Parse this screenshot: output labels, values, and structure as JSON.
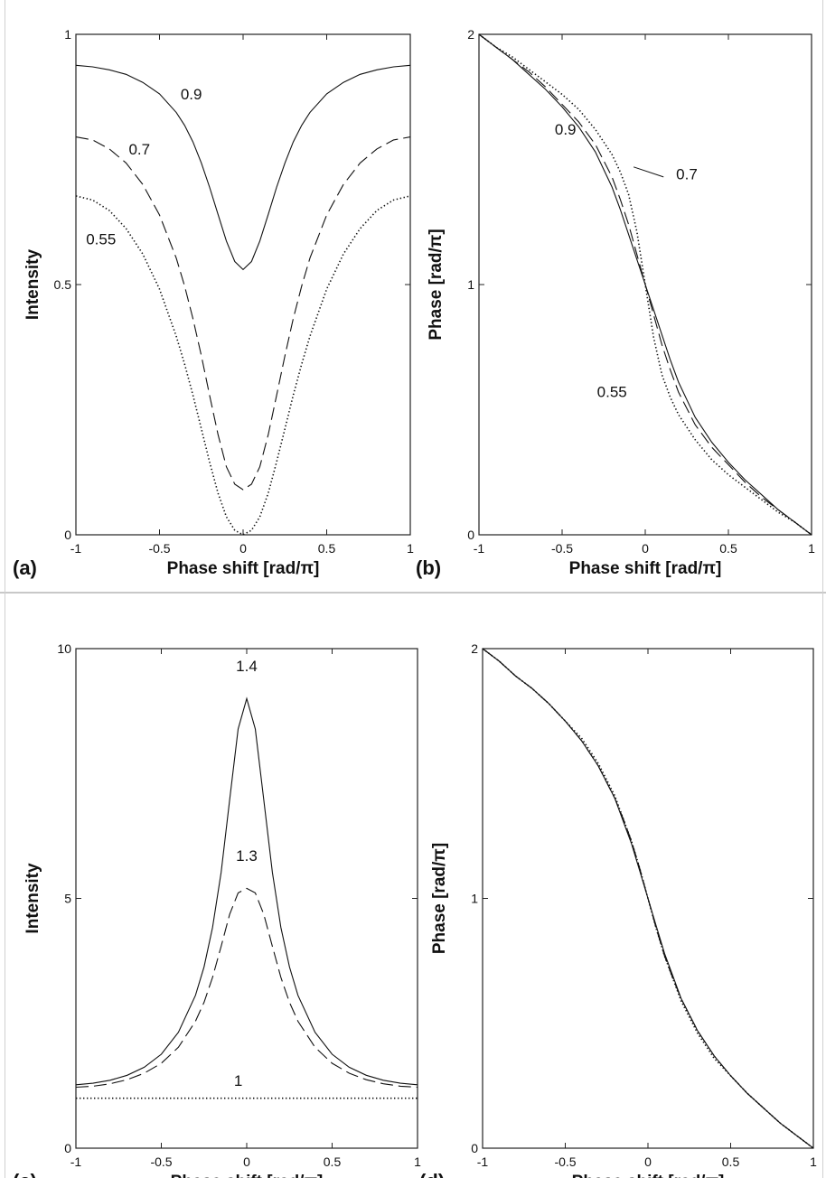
{
  "chart_data": [
    {
      "panel": "(a)",
      "type": "line",
      "xlabel": "Phase shift [rad/π]",
      "ylabel": "Intensity",
      "xlim": [
        -1,
        1
      ],
      "ylim": [
        0,
        1
      ],
      "xticks": [
        -1,
        -0.5,
        0,
        0.5,
        1
      ],
      "xtick_labels": [
        "-1",
        "-0.5",
        "0",
        "0.5",
        "1"
      ],
      "yticks": [
        0,
        0.5,
        1
      ],
      "ytick_labels": [
        "0",
        "0.5",
        "1"
      ],
      "grid": false,
      "series": [
        {
          "name": "0.9",
          "style": "solid",
          "x": [
            -1,
            -0.9,
            -0.8,
            -0.7,
            -0.6,
            -0.5,
            -0.4,
            -0.35,
            -0.3,
            -0.25,
            -0.2,
            -0.15,
            -0.1,
            -0.05,
            0,
            0.05,
            0.1,
            0.15,
            0.2,
            0.25,
            0.3,
            0.35,
            0.4,
            0.5,
            0.6,
            0.7,
            0.8,
            0.9,
            1
          ],
          "y": [
            0.938,
            0.935,
            0.929,
            0.92,
            0.904,
            0.881,
            0.844,
            0.818,
            0.785,
            0.743,
            0.694,
            0.64,
            0.587,
            0.546,
            0.53,
            0.546,
            0.587,
            0.64,
            0.694,
            0.743,
            0.785,
            0.818,
            0.844,
            0.881,
            0.904,
            0.92,
            0.929,
            0.935,
            0.938
          ]
        },
        {
          "name": "0.7",
          "style": "dashed",
          "x": [
            -1,
            -0.9,
            -0.8,
            -0.7,
            -0.6,
            -0.5,
            -0.4,
            -0.35,
            -0.3,
            -0.25,
            -0.2,
            -0.15,
            -0.1,
            -0.05,
            0,
            0.05,
            0.1,
            0.15,
            0.2,
            0.25,
            0.3,
            0.35,
            0.4,
            0.5,
            0.6,
            0.7,
            0.8,
            0.9,
            1
          ],
          "y": [
            0.795,
            0.789,
            0.771,
            0.743,
            0.7,
            0.639,
            0.553,
            0.497,
            0.432,
            0.358,
            0.278,
            0.2,
            0.136,
            0.101,
            0.09,
            0.101,
            0.136,
            0.2,
            0.278,
            0.358,
            0.432,
            0.497,
            0.553,
            0.639,
            0.7,
            0.743,
            0.771,
            0.789,
            0.795
          ]
        },
        {
          "name": "0.55",
          "style": "dotted",
          "x": [
            -1,
            -0.9,
            -0.8,
            -0.7,
            -0.6,
            -0.5,
            -0.4,
            -0.35,
            -0.3,
            -0.25,
            -0.2,
            -0.15,
            -0.1,
            -0.05,
            0,
            0.05,
            0.1,
            0.15,
            0.2,
            0.25,
            0.3,
            0.35,
            0.4,
            0.5,
            0.6,
            0.7,
            0.8,
            0.9,
            1
          ],
          "y": [
            0.677,
            0.669,
            0.648,
            0.612,
            0.561,
            0.491,
            0.397,
            0.341,
            0.279,
            0.212,
            0.145,
            0.083,
            0.036,
            0.009,
            0.0,
            0.009,
            0.036,
            0.083,
            0.145,
            0.212,
            0.279,
            0.341,
            0.397,
            0.491,
            0.561,
            0.612,
            0.648,
            0.669,
            0.677
          ]
        }
      ],
      "annotations": [
        {
          "text": "0.9",
          "x": -0.31,
          "y": 0.87
        },
        {
          "text": "0.7",
          "x": -0.62,
          "y": 0.76
        },
        {
          "text": "0.55",
          "x": -0.85,
          "y": 0.58
        }
      ]
    },
    {
      "panel": "(b)",
      "type": "line",
      "xlabel": "Phase shift [rad/π]",
      "ylabel": "Phase [rad/π]",
      "xlim": [
        -1,
        1
      ],
      "ylim": [
        0,
        2
      ],
      "xticks": [
        -1,
        -0.5,
        0,
        0.5,
        1
      ],
      "xtick_labels": [
        "-1",
        "-0.5",
        "0",
        "0.5",
        "1"
      ],
      "yticks": [
        0,
        1,
        2
      ],
      "ytick_labels": [
        "0",
        "1",
        "2"
      ],
      "grid": false,
      "series": [
        {
          "name": "0.9",
          "style": "solid",
          "x": [
            -1,
            -0.9,
            -0.8,
            -0.7,
            -0.6,
            -0.5,
            -0.4,
            -0.3,
            -0.2,
            -0.15,
            -0.1,
            -0.05,
            0,
            0.05,
            0.1,
            0.15,
            0.2,
            0.3,
            0.4,
            0.5,
            0.6,
            0.7,
            0.8,
            0.9,
            1
          ],
          "y": [
            2.0,
            1.95,
            1.9,
            1.84,
            1.78,
            1.71,
            1.63,
            1.53,
            1.39,
            1.3,
            1.2,
            1.1,
            1.0,
            0.9,
            0.8,
            0.7,
            0.61,
            0.47,
            0.37,
            0.29,
            0.22,
            0.16,
            0.1,
            0.05,
            0.0
          ]
        },
        {
          "name": "0.7",
          "style": "dashed",
          "x": [
            -1,
            -0.9,
            -0.8,
            -0.7,
            -0.6,
            -0.5,
            -0.4,
            -0.3,
            -0.2,
            -0.15,
            -0.1,
            -0.05,
            0,
            0.05,
            0.1,
            0.15,
            0.2,
            0.3,
            0.4,
            0.5,
            0.6,
            0.7,
            0.8,
            0.9,
            1
          ],
          "y": [
            2.0,
            1.95,
            1.9,
            1.85,
            1.79,
            1.72,
            1.65,
            1.56,
            1.43,
            1.34,
            1.24,
            1.12,
            1.0,
            0.88,
            0.76,
            0.66,
            0.57,
            0.44,
            0.35,
            0.28,
            0.21,
            0.15,
            0.1,
            0.05,
            0.0
          ]
        },
        {
          "name": "0.55",
          "style": "dotted",
          "x": [
            -1,
            -0.9,
            -0.8,
            -0.7,
            -0.6,
            -0.5,
            -0.4,
            -0.3,
            -0.2,
            -0.15,
            -0.1,
            -0.05,
            0,
            0.05,
            0.1,
            0.15,
            0.2,
            0.3,
            0.4,
            0.5,
            0.6,
            0.7,
            0.8,
            0.9,
            1
          ],
          "y": [
            2.0,
            1.95,
            1.91,
            1.86,
            1.81,
            1.76,
            1.7,
            1.62,
            1.52,
            1.45,
            1.36,
            1.21,
            1.0,
            0.79,
            0.64,
            0.55,
            0.48,
            0.38,
            0.3,
            0.24,
            0.19,
            0.14,
            0.09,
            0.05,
            0.0
          ]
        }
      ],
      "annotations": [
        {
          "text": "0.9",
          "x": -0.48,
          "y": 1.6
        },
        {
          "text": "0.7",
          "x": 0.25,
          "y": 1.42
        },
        {
          "text": "0.55",
          "x": -0.2,
          "y": 0.55
        }
      ]
    },
    {
      "panel": "(c)",
      "type": "line",
      "xlabel": "Phase shift [rad/π]",
      "ylabel": "Intensity",
      "xlim": [
        -1,
        1
      ],
      "ylim": [
        0,
        10
      ],
      "xticks": [
        -1,
        -0.5,
        0,
        0.5,
        1
      ],
      "xtick_labels": [
        "-1",
        "-0.5",
        "0",
        "0.5",
        "1"
      ],
      "yticks": [
        0,
        5,
        10
      ],
      "ytick_labels": [
        "0",
        "5",
        "10"
      ],
      "grid": false,
      "series": [
        {
          "name": "1.4",
          "style": "solid",
          "x": [
            -1,
            -0.9,
            -0.8,
            -0.7,
            -0.6,
            -0.5,
            -0.4,
            -0.3,
            -0.25,
            -0.2,
            -0.15,
            -0.1,
            -0.05,
            0,
            0.05,
            0.1,
            0.15,
            0.2,
            0.25,
            0.3,
            0.4,
            0.5,
            0.6,
            0.7,
            0.8,
            0.9,
            1
          ],
          "y": [
            1.27,
            1.3,
            1.36,
            1.46,
            1.62,
            1.88,
            2.32,
            3.06,
            3.63,
            4.42,
            5.52,
            6.97,
            8.39,
            9.0,
            8.39,
            6.97,
            5.52,
            4.42,
            3.63,
            3.06,
            2.32,
            1.88,
            1.62,
            1.46,
            1.36,
            1.3,
            1.27
          ]
        },
        {
          "name": "1.3",
          "style": "dashed",
          "x": [
            -1,
            -0.9,
            -0.8,
            -0.7,
            -0.6,
            -0.5,
            -0.4,
            -0.3,
            -0.25,
            -0.2,
            -0.15,
            -0.1,
            -0.05,
            0,
            0.05,
            0.1,
            0.15,
            0.2,
            0.25,
            0.3,
            0.4,
            0.5,
            0.6,
            0.7,
            0.8,
            0.9,
            1
          ],
          "y": [
            1.22,
            1.24,
            1.29,
            1.37,
            1.5,
            1.7,
            2.02,
            2.54,
            2.92,
            3.42,
            4.04,
            4.68,
            5.11,
            5.2,
            5.11,
            4.68,
            4.04,
            3.42,
            2.92,
            2.54,
            2.02,
            1.7,
            1.5,
            1.37,
            1.29,
            1.24,
            1.22
          ]
        },
        {
          "name": "1",
          "style": "dotted",
          "x": [
            -1,
            1
          ],
          "y": [
            1.0,
            1.0
          ]
        }
      ],
      "annotations": [
        {
          "text": "1.4",
          "x": 0,
          "y": 9.55
        },
        {
          "text": "1.3",
          "x": 0,
          "y": 5.75
        },
        {
          "text": "1",
          "x": -0.05,
          "y": 1.25
        }
      ]
    },
    {
      "panel": "(d)",
      "type": "line",
      "xlabel": "Phase shift [rad/π]",
      "ylabel": "Phase [rad/π]",
      "xlim": [
        -1,
        1
      ],
      "ylim": [
        0,
        2
      ],
      "xticks": [
        -1,
        -0.5,
        0,
        0.5,
        1
      ],
      "xtick_labels": [
        "-1",
        "-0.5",
        "0",
        "0.5",
        "1"
      ],
      "yticks": [
        0,
        1,
        2
      ],
      "ytick_labels": [
        "0",
        "1",
        "2"
      ],
      "grid": false,
      "series": [
        {
          "style": "solid",
          "x": [
            -1,
            -0.9,
            -0.8,
            -0.7,
            -0.6,
            -0.5,
            -0.4,
            -0.3,
            -0.2,
            -0.15,
            -0.1,
            -0.05,
            0,
            0.05,
            0.1,
            0.15,
            0.2,
            0.3,
            0.4,
            0.5,
            0.6,
            0.7,
            0.8,
            0.9,
            1
          ],
          "y": [
            2.0,
            1.95,
            1.89,
            1.84,
            1.78,
            1.71,
            1.63,
            1.53,
            1.4,
            1.31,
            1.22,
            1.11,
            1.0,
            0.89,
            0.78,
            0.69,
            0.6,
            0.47,
            0.37,
            0.29,
            0.22,
            0.16,
            0.1,
            0.05,
            0.0
          ]
        },
        {
          "style": "dashed",
          "x": [
            -1,
            -0.9,
            -0.8,
            -0.7,
            -0.6,
            -0.5,
            -0.4,
            -0.3,
            -0.2,
            -0.15,
            -0.1,
            -0.05,
            0,
            0.05,
            0.1,
            0.15,
            0.2,
            0.3,
            0.4,
            0.5,
            0.6,
            0.7,
            0.8,
            0.9,
            1
          ],
          "y": [
            2.0,
            1.95,
            1.89,
            1.84,
            1.78,
            1.71,
            1.63,
            1.53,
            1.4,
            1.32,
            1.23,
            1.12,
            1.0,
            0.88,
            0.77,
            0.68,
            0.6,
            0.47,
            0.37,
            0.29,
            0.22,
            0.16,
            0.1,
            0.05,
            0.0
          ]
        },
        {
          "style": "dotted",
          "x": [
            -1,
            -0.9,
            -0.8,
            -0.7,
            -0.6,
            -0.5,
            -0.4,
            -0.3,
            -0.2,
            -0.15,
            -0.1,
            -0.05,
            0,
            0.05,
            0.1,
            0.15,
            0.2,
            0.3,
            0.4,
            0.5,
            0.6,
            0.7,
            0.8,
            0.9,
            1
          ],
          "y": [
            2.0,
            1.95,
            1.89,
            1.84,
            1.78,
            1.71,
            1.64,
            1.54,
            1.41,
            1.32,
            1.23,
            1.12,
            1.0,
            0.88,
            0.77,
            0.68,
            0.59,
            0.46,
            0.36,
            0.29,
            0.22,
            0.16,
            0.1,
            0.05,
            0.0
          ]
        }
      ],
      "annotations": []
    }
  ]
}
